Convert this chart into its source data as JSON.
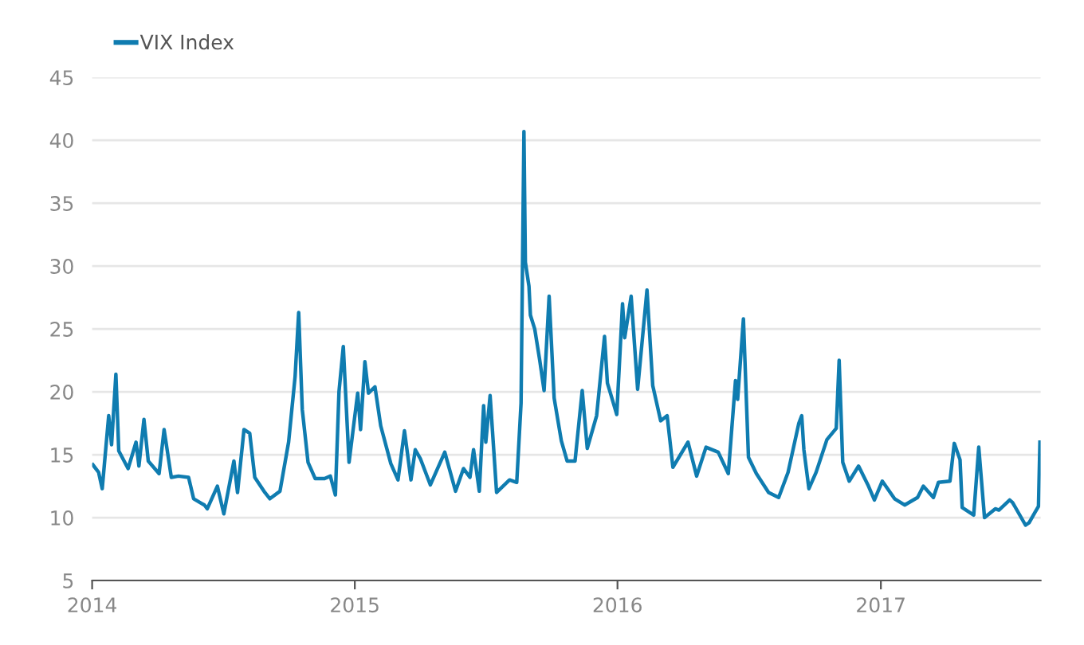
{
  "chart_data": {
    "type": "line",
    "x": [
      "2014-01-02",
      "2014-01-10",
      "2014-01-15",
      "2014-01-24",
      "2014-01-28",
      "2014-02-03",
      "2014-02-07",
      "2014-02-20",
      "2014-03-03",
      "2014-03-07",
      "2014-03-14",
      "2014-03-20",
      "2014-04-04",
      "2014-04-11",
      "2014-04-21",
      "2014-05-01",
      "2014-05-15",
      "2014-05-22",
      "2014-06-06",
      "2014-06-10",
      "2014-06-24",
      "2014-07-03",
      "2014-07-17",
      "2014-07-22",
      "2014-07-31",
      "2014-08-08",
      "2014-08-15",
      "2014-08-29",
      "2014-09-05",
      "2014-09-19",
      "2014-10-01",
      "2014-10-10",
      "2014-10-15",
      "2014-10-20",
      "2014-10-28",
      "2014-11-07",
      "2014-11-20",
      "2014-11-28",
      "2014-12-05",
      "2014-12-10",
      "2014-12-16",
      "2014-12-24",
      "2015-01-05",
      "2015-01-09",
      "2015-01-15",
      "2015-01-20",
      "2015-01-29",
      "2015-02-06",
      "2015-02-20",
      "2015-03-02",
      "2015-03-11",
      "2015-03-20",
      "2015-03-26",
      "2015-04-02",
      "2015-04-16",
      "2015-05-06",
      "2015-05-21",
      "2015-06-01",
      "2015-06-10",
      "2015-06-15",
      "2015-06-23",
      "2015-06-29",
      "2015-07-02",
      "2015-07-08",
      "2015-07-17",
      "2015-08-04",
      "2015-08-14",
      "2015-08-20",
      "2015-08-24",
      "2015-08-26",
      "2015-08-31",
      "2015-09-02",
      "2015-09-08",
      "2015-09-15",
      "2015-09-21",
      "2015-09-28",
      "2015-10-05",
      "2015-10-15",
      "2015-10-23",
      "2015-11-03",
      "2015-11-13",
      "2015-11-20",
      "2015-12-03",
      "2015-12-14",
      "2015-12-18",
      "2015-12-31",
      "2016-01-08",
      "2016-01-11",
      "2016-01-20",
      "2016-01-29",
      "2016-02-11",
      "2016-02-19",
      "2016-03-01",
      "2016-03-10",
      "2016-03-18",
      "2016-04-08",
      "2016-04-20",
      "2016-05-03",
      "2016-05-20",
      "2016-06-03",
      "2016-06-13",
      "2016-06-16",
      "2016-06-24",
      "2016-07-01",
      "2016-07-12",
      "2016-07-29",
      "2016-08-12",
      "2016-08-25",
      "2016-09-09",
      "2016-09-13",
      "2016-09-16",
      "2016-09-23",
      "2016-10-03",
      "2016-10-18",
      "2016-10-31",
      "2016-11-04",
      "2016-11-09",
      "2016-11-18",
      "2016-12-01",
      "2016-12-14",
      "2016-12-23",
      "2017-01-03",
      "2017-01-20",
      "2017-02-03",
      "2017-02-21",
      "2017-03-01",
      "2017-03-15",
      "2017-03-22",
      "2017-04-07",
      "2017-04-13",
      "2017-04-21",
      "2017-04-24",
      "2017-05-10",
      "2017-05-17",
      "2017-05-25",
      "2017-06-09",
      "2017-06-14",
      "2017-06-29",
      "2017-07-03",
      "2017-07-21",
      "2017-07-26",
      "2017-08-03",
      "2017-08-08",
      "2017-08-10"
    ],
    "series": [
      {
        "name": "VIX Index",
        "color": "#0f7cb0",
        "values": [
          14.2,
          13.6,
          12.3,
          18.1,
          15.8,
          21.4,
          15.3,
          13.9,
          16.0,
          14.1,
          17.8,
          14.5,
          13.5,
          17.0,
          13.2,
          13.3,
          13.2,
          11.5,
          11.0,
          10.7,
          12.5,
          10.3,
          14.5,
          12.0,
          17.0,
          16.7,
          13.2,
          12.0,
          11.5,
          12.1,
          16.0,
          21.2,
          26.3,
          18.6,
          14.4,
          13.1,
          13.1,
          13.3,
          11.8,
          20.0,
          23.6,
          14.4,
          19.9,
          17.0,
          22.4,
          19.9,
          20.4,
          17.3,
          14.3,
          13.0,
          16.9,
          13.0,
          15.4,
          14.7,
          12.6,
          15.2,
          12.1,
          13.9,
          13.2,
          15.4,
          12.1,
          18.9,
          16.0,
          19.7,
          12.0,
          13.0,
          12.8,
          19.1,
          40.7,
          30.3,
          28.4,
          26.1,
          25.0,
          22.5,
          20.1,
          27.6,
          19.5,
          16.1,
          14.5,
          14.5,
          20.1,
          15.5,
          18.1,
          24.4,
          20.7,
          18.2,
          27.0,
          24.3,
          27.6,
          20.2,
          28.1,
          20.5,
          17.7,
          18.1,
          14.0,
          16.0,
          13.3,
          15.6,
          15.2,
          13.5,
          20.9,
          19.4,
          25.8,
          14.8,
          13.5,
          12.0,
          11.6,
          13.6,
          17.5,
          18.1,
          15.4,
          12.3,
          13.6,
          16.2,
          17.1,
          22.5,
          14.4,
          12.9,
          14.1,
          12.6,
          11.4,
          12.9,
          11.5,
          11.0,
          11.6,
          12.5,
          11.6,
          12.8,
          12.9,
          15.9,
          14.6,
          10.8,
          10.2,
          15.6,
          10.0,
          10.7,
          10.6,
          11.4,
          11.2,
          9.4,
          9.6,
          10.4,
          10.9,
          16.0
        ]
      }
    ],
    "xlim": [
      "2014-01-01",
      "2017-08-11"
    ],
    "xticks": [
      {
        "value": "2014-01-01",
        "label": "2014"
      },
      {
        "value": "2015-01-01",
        "label": "2015"
      },
      {
        "value": "2016-01-01",
        "label": "2016"
      },
      {
        "value": "2017-01-01",
        "label": "2017"
      }
    ],
    "ylim": [
      5,
      45
    ],
    "yticks": [
      5,
      10,
      15,
      20,
      25,
      30,
      35,
      40,
      45
    ],
    "grid": "y",
    "legend": "top left",
    "marker": "none",
    "line_style": "solid"
  }
}
